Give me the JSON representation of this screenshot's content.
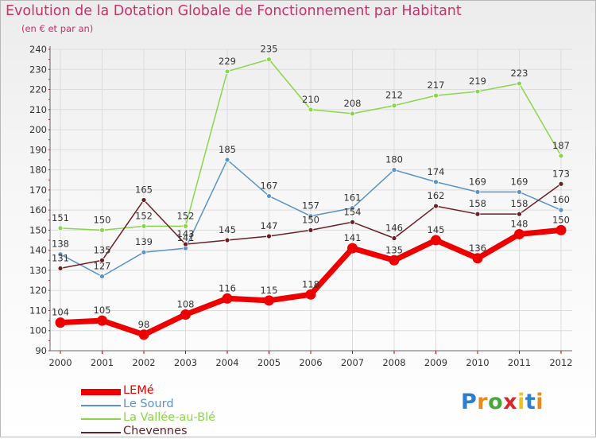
{
  "title": "Evolution de la Dotation Globale de Fonctionnement par Habitant",
  "subtitle": "(en € et par an)",
  "logo": {
    "text": "Proxiti",
    "letters": [
      "P",
      "r",
      "o",
      "x",
      "i",
      "t",
      "i"
    ],
    "letter_colors": [
      "#2b7fd0",
      "#e98a1c",
      "#4aa63c",
      "#d9272e",
      "#e9c41c",
      "#2b7fd0",
      "#e98a1c"
    ]
  },
  "chart_data": {
    "type": "line",
    "title": "Evolution de la Dotation Globale de Fonctionnement par Habitant",
    "subtitle": "(en € et par an)",
    "xlabel": "",
    "ylabel": "",
    "x": [
      "2000",
      "2001",
      "2002",
      "2003",
      "2004",
      "2005",
      "2006",
      "2007",
      "2008",
      "2009",
      "2010",
      "2011",
      "2012"
    ],
    "ylim": [
      90,
      240
    ],
    "yticks": [
      90,
      100,
      110,
      120,
      130,
      140,
      150,
      160,
      170,
      180,
      190,
      200,
      210,
      220,
      230,
      240
    ],
    "grid": true,
    "legend_position": "bottom-left",
    "series": [
      {
        "name": "Le Sourd",
        "color": "#5a93c7",
        "values": [
          138,
          127,
          139,
          141,
          185,
          167,
          157,
          161,
          180,
          174,
          169,
          169,
          160
        ]
      },
      {
        "name": "La Vallée-au-Blé",
        "color": "#8ad64a",
        "values": [
          151,
          150,
          152,
          152,
          229,
          235,
          210,
          208,
          212,
          217,
          219,
          223,
          187
        ]
      },
      {
        "name": "Chevennes",
        "color": "#6b1f24",
        "values": [
          131,
          135,
          165,
          143,
          145,
          147,
          150,
          154,
          146,
          162,
          158,
          158,
          173
        ]
      },
      {
        "name": "LEMé",
        "color": "#ee0000",
        "values": [
          104,
          105,
          98,
          108,
          116,
          115,
          118,
          141,
          135,
          145,
          136,
          148,
          150
        ]
      }
    ]
  },
  "legend": [
    {
      "name": "LEMé",
      "color": "#ee0000"
    },
    {
      "name": "Le Sourd",
      "color": "#5a93c7"
    },
    {
      "name": "La Vallée-au-Blé",
      "color": "#8ad64a"
    },
    {
      "name": "Chevennes",
      "color": "#6b1f24"
    }
  ]
}
